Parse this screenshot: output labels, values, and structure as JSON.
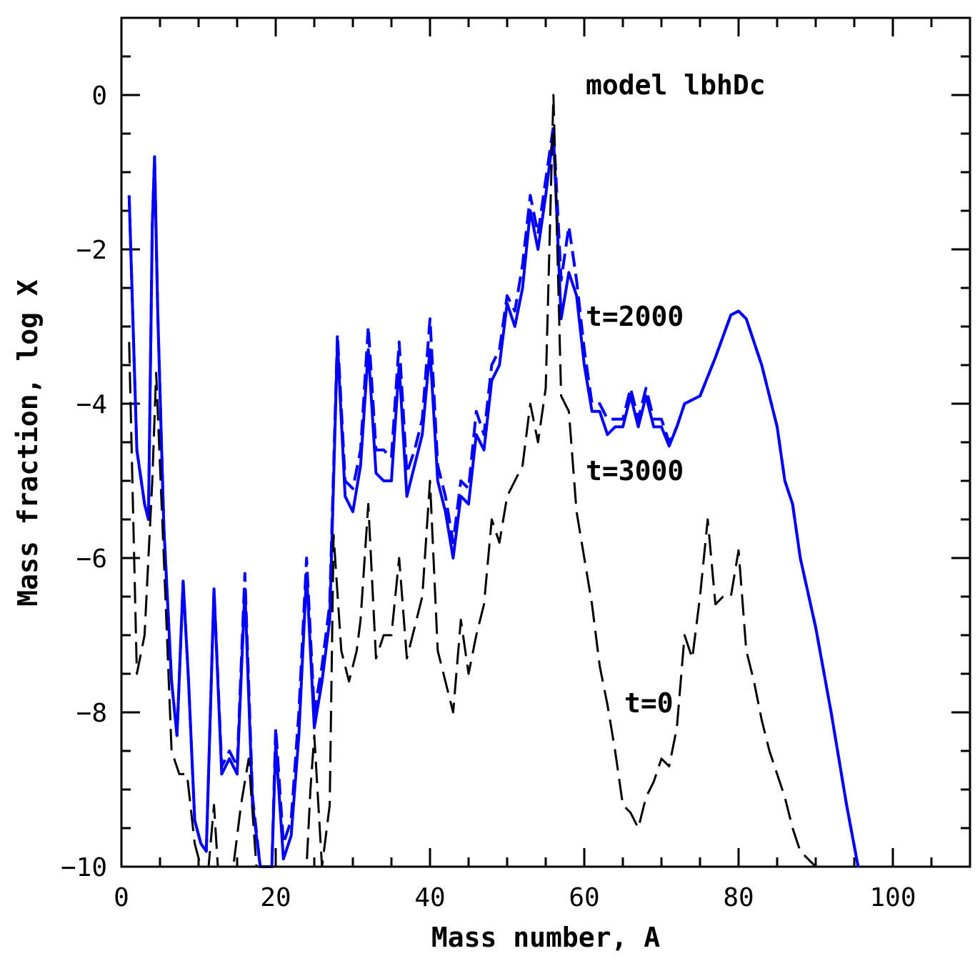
{
  "chart_data": {
    "type": "line",
    "title": "",
    "xlabel": "Mass number, A",
    "ylabel": "Mass fraction, log X",
    "xlim": [
      0,
      110
    ],
    "ylim": [
      -10,
      1
    ],
    "xticks": [
      0,
      20,
      40,
      60,
      80,
      100
    ],
    "yticks": [
      0,
      -2,
      -4,
      -6,
      -8,
      -10
    ],
    "xtick_labels": [
      "0",
      "20",
      "40",
      "60",
      "80",
      "100"
    ],
    "ytick_labels": [
      "0",
      "−2",
      "−4",
      "−6",
      "−8",
      "−10"
    ],
    "grid": false,
    "legend": "none",
    "annotations": [
      {
        "text": "model lbhDc",
        "x": 60,
        "y": 0.1
      },
      {
        "text": "t=2000",
        "x": 60,
        "y": -2.9
      },
      {
        "text": "t=3000",
        "x": 60,
        "y": -4.9
      },
      {
        "text": "t=0",
        "x": 65,
        "y": -8.1
      }
    ],
    "series": [
      {
        "color": "#0000ff",
        "style": "solid",
        "points": [
          [
            1,
            -1.3
          ],
          [
            2,
            -4.6
          ],
          [
            3,
            -5.3
          ],
          [
            3.5,
            -5.5
          ],
          [
            4,
            -1.7
          ],
          [
            4.3,
            -0.8
          ],
          [
            4.7,
            -2.8
          ],
          [
            5.5,
            -5.6
          ],
          [
            6.5,
            -7.6
          ],
          [
            7.2,
            -8.3
          ],
          [
            8,
            -6.3
          ],
          [
            8.7,
            -7.6
          ],
          [
            9.5,
            -9.4
          ],
          [
            10.3,
            -9.7
          ],
          [
            11,
            -9.8
          ],
          [
            12,
            -6.4
          ],
          [
            13,
            -8.8
          ],
          [
            14,
            -8.6
          ],
          [
            15,
            -8.8
          ],
          [
            16,
            -6.4
          ],
          [
            17,
            -9.2
          ],
          [
            18,
            -10
          ],
          [
            19.5,
            -10
          ],
          [
            20,
            -8.4
          ],
          [
            21,
            -9.9
          ],
          [
            22,
            -9.6
          ],
          [
            23,
            -8.3
          ],
          [
            24,
            -6.2
          ],
          [
            25,
            -8.2
          ],
          [
            26,
            -7.6
          ],
          [
            27,
            -6.8
          ],
          [
            28,
            -3.2
          ],
          [
            29,
            -5.2
          ],
          [
            30,
            -5.4
          ],
          [
            31,
            -4.8
          ],
          [
            32,
            -3.3
          ],
          [
            33,
            -4.9
          ],
          [
            34,
            -5.0
          ],
          [
            35,
            -5.0
          ],
          [
            36,
            -3.5
          ],
          [
            37,
            -5.2
          ],
          [
            38,
            -4.8
          ],
          [
            39,
            -4.4
          ],
          [
            40,
            -3.3
          ],
          [
            41,
            -5.0
          ],
          [
            42,
            -5.4
          ],
          [
            43,
            -6.0
          ],
          [
            44,
            -5.2
          ],
          [
            45,
            -5.3
          ],
          [
            46,
            -4.4
          ],
          [
            47,
            -4.6
          ],
          [
            48,
            -3.7
          ],
          [
            49,
            -3.5
          ],
          [
            50,
            -2.7
          ],
          [
            51,
            -3.0
          ],
          [
            52,
            -2.5
          ],
          [
            53,
            -1.5
          ],
          [
            54,
            -2.0
          ],
          [
            55,
            -1.3
          ],
          [
            56,
            -0.5
          ],
          [
            57,
            -2.9
          ],
          [
            58,
            -2.3
          ],
          [
            59,
            -2.6
          ],
          [
            60,
            -3.5
          ],
          [
            61,
            -4.1
          ],
          [
            62,
            -4.1
          ],
          [
            63,
            -4.4
          ],
          [
            64,
            -4.3
          ],
          [
            65,
            -4.3
          ],
          [
            66,
            -3.9
          ],
          [
            67,
            -4.3
          ],
          [
            68,
            -3.9
          ],
          [
            69,
            -4.3
          ],
          [
            70,
            -4.3
          ],
          [
            71,
            -4.55
          ],
          [
            72,
            -4.3
          ],
          [
            73,
            -4.0
          ],
          [
            75,
            -3.9
          ],
          [
            77,
            -3.4
          ],
          [
            79,
            -2.85
          ],
          [
            80,
            -2.8
          ],
          [
            81,
            -2.9
          ],
          [
            83,
            -3.5
          ],
          [
            85,
            -4.3
          ],
          [
            86,
            -5.0
          ],
          [
            87,
            -5.3
          ],
          [
            88,
            -6.0
          ],
          [
            90,
            -6.9
          ],
          [
            92,
            -8.0
          ],
          [
            94,
            -9.2
          ],
          [
            95.5,
            -10
          ]
        ]
      },
      {
        "color": "#0000ff",
        "style": "dashed",
        "points": [
          [
            1,
            -1.3
          ],
          [
            2,
            -4.6
          ],
          [
            3,
            -5.3
          ],
          [
            3.5,
            -5.5
          ],
          [
            4,
            -1.7
          ],
          [
            4.3,
            -0.8
          ],
          [
            4.7,
            -2.8
          ],
          [
            5.5,
            -5.6
          ],
          [
            6.5,
            -7.6
          ],
          [
            7.2,
            -8.3
          ],
          [
            8,
            -6.3
          ],
          [
            8.7,
            -7.6
          ],
          [
            9.5,
            -9.4
          ],
          [
            10.3,
            -9.7
          ],
          [
            11,
            -9.8
          ],
          [
            12,
            -6.4
          ],
          [
            13,
            -8.7
          ],
          [
            14,
            -8.5
          ],
          [
            15,
            -8.7
          ],
          [
            16,
            -6.2
          ],
          [
            17,
            -9.1
          ],
          [
            18,
            -10
          ],
          [
            19.5,
            -10
          ],
          [
            20,
            -8.2
          ],
          [
            21,
            -9.7
          ],
          [
            22,
            -9.4
          ],
          [
            23,
            -8.0
          ],
          [
            24,
            -6.0
          ],
          [
            25,
            -8.0
          ],
          [
            26,
            -7.4
          ],
          [
            27,
            -6.6
          ],
          [
            28,
            -3.1
          ],
          [
            29,
            -5.0
          ],
          [
            30,
            -5.1
          ],
          [
            31,
            -4.6
          ],
          [
            32,
            -3.0
          ],
          [
            33,
            -4.6
          ],
          [
            34,
            -4.6
          ],
          [
            35,
            -4.7
          ],
          [
            36,
            -3.2
          ],
          [
            37,
            -4.9
          ],
          [
            38,
            -4.6
          ],
          [
            39,
            -4.2
          ],
          [
            40,
            -2.9
          ],
          [
            41,
            -4.8
          ],
          [
            42,
            -5.2
          ],
          [
            43,
            -5.8
          ],
          [
            44,
            -5.0
          ],
          [
            45,
            -5.1
          ],
          [
            46,
            -4.1
          ],
          [
            47,
            -4.4
          ],
          [
            48,
            -3.5
          ],
          [
            49,
            -3.3
          ],
          [
            50,
            -2.6
          ],
          [
            51,
            -2.8
          ],
          [
            52,
            -2.2
          ],
          [
            53,
            -1.3
          ],
          [
            54,
            -1.8
          ],
          [
            55,
            -1.1
          ],
          [
            56,
            -0.4
          ],
          [
            57,
            -2.4
          ],
          [
            58,
            -1.7
          ],
          [
            59,
            -2.4
          ],
          [
            60,
            -3.3
          ],
          [
            61,
            -4.0
          ],
          [
            62,
            -4.0
          ],
          [
            63,
            -4.2
          ],
          [
            64,
            -4.2
          ],
          [
            65,
            -4.2
          ],
          [
            66,
            -3.8
          ],
          [
            67,
            -4.2
          ],
          [
            68,
            -3.8
          ],
          [
            69,
            -4.2
          ],
          [
            70,
            -4.2
          ],
          [
            71,
            -4.5
          ],
          [
            72,
            -4.3
          ],
          [
            73,
            -4.0
          ],
          [
            75,
            -3.9
          ],
          [
            77,
            -3.4
          ],
          [
            79,
            -2.85
          ],
          [
            80,
            -2.8
          ],
          [
            81,
            -2.9
          ],
          [
            83,
            -3.5
          ],
          [
            85,
            -4.3
          ],
          [
            86,
            -5.0
          ],
          [
            87,
            -5.3
          ],
          [
            88,
            -6.0
          ],
          [
            90,
            -6.9
          ],
          [
            92,
            -8.0
          ],
          [
            94,
            -9.2
          ],
          [
            95.5,
            -10
          ]
        ]
      },
      {
        "color": "#000000",
        "style": "dashed",
        "points": [
          [
            1,
            -3.2
          ],
          [
            2,
            -7.5
          ],
          [
            3,
            -7.0
          ],
          [
            4,
            -5.0
          ],
          [
            4.5,
            -3.6
          ],
          [
            5.5,
            -6.0
          ],
          [
            6.5,
            -8.5
          ],
          [
            7.5,
            -8.8
          ],
          [
            8.5,
            -8.8
          ],
          [
            9.5,
            -9.7
          ],
          [
            10.3,
            -10
          ],
          [
            11.3,
            -10
          ],
          [
            12,
            -9.2
          ],
          [
            12.5,
            -10
          ],
          [
            14.5,
            -10
          ],
          [
            15.5,
            -9.2
          ],
          [
            16.5,
            -8.6
          ],
          [
            17.5,
            -10
          ],
          [
            24,
            -10
          ],
          [
            24.5,
            -9.0
          ],
          [
            25,
            -8.3
          ],
          [
            26,
            -10
          ],
          [
            27,
            -9.2
          ],
          [
            27.5,
            -5.7
          ],
          [
            28.5,
            -7.2
          ],
          [
            29.5,
            -7.6
          ],
          [
            30.5,
            -7.2
          ],
          [
            31,
            -6.8
          ],
          [
            32,
            -5.3
          ],
          [
            33,
            -7.3
          ],
          [
            34,
            -7.0
          ],
          [
            35,
            -7.0
          ],
          [
            36,
            -6.0
          ],
          [
            37,
            -7.3
          ],
          [
            38,
            -6.9
          ],
          [
            39,
            -6.5
          ],
          [
            40,
            -5.0
          ],
          [
            41,
            -7.2
          ],
          [
            42,
            -7.6
          ],
          [
            43,
            -8.0
          ],
          [
            44,
            -6.8
          ],
          [
            45,
            -7.5
          ],
          [
            46,
            -7.0
          ],
          [
            47,
            -6.6
          ],
          [
            48,
            -5.5
          ],
          [
            49,
            -5.8
          ],
          [
            50,
            -5.2
          ],
          [
            51,
            -5.0
          ],
          [
            52,
            -4.8
          ],
          [
            53,
            -4.0
          ],
          [
            54,
            -4.5
          ],
          [
            55,
            -3.8
          ],
          [
            56,
            0.0
          ],
          [
            57,
            -3.9
          ],
          [
            58,
            -4.1
          ],
          [
            59,
            -5.4
          ],
          [
            60,
            -6.0
          ],
          [
            61,
            -6.6
          ],
          [
            62,
            -7.4
          ],
          [
            63,
            -7.9
          ],
          [
            64,
            -8.5
          ],
          [
            65,
            -9.2
          ],
          [
            66,
            -9.3
          ],
          [
            67,
            -9.5
          ],
          [
            68,
            -9.1
          ],
          [
            69,
            -8.9
          ],
          [
            70,
            -8.6
          ],
          [
            71,
            -8.7
          ],
          [
            72,
            -8.2
          ],
          [
            73,
            -7.0
          ],
          [
            74,
            -7.3
          ],
          [
            75,
            -6.5
          ],
          [
            76,
            -5.5
          ],
          [
            77,
            -6.6
          ],
          [
            78,
            -6.5
          ],
          [
            79,
            -6.5
          ],
          [
            80,
            -5.9
          ],
          [
            81,
            -7.2
          ],
          [
            82,
            -7.6
          ],
          [
            83,
            -8.1
          ],
          [
            84,
            -8.5
          ],
          [
            85,
            -8.8
          ],
          [
            86,
            -9.1
          ],
          [
            87,
            -9.5
          ],
          [
            88,
            -9.8
          ],
          [
            89,
            -9.9
          ],
          [
            90,
            -10
          ]
        ]
      }
    ]
  }
}
